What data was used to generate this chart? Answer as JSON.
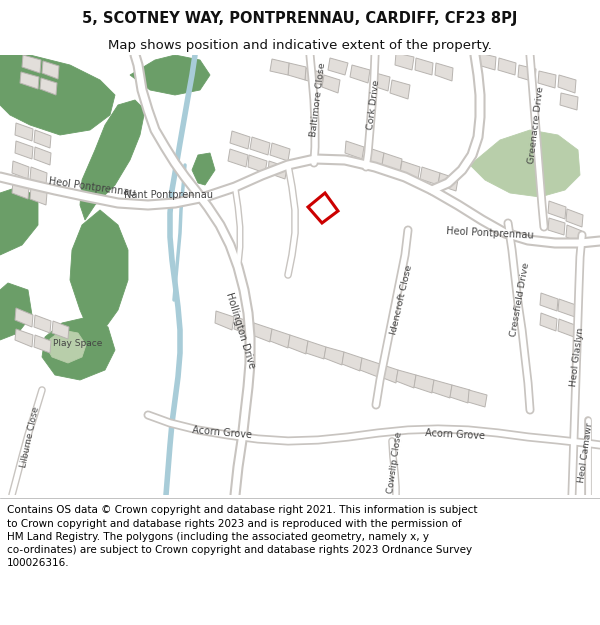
{
  "title_line1": "5, SCOTNEY WAY, PONTPRENNAU, CARDIFF, CF23 8PJ",
  "title_line2": "Map shows position and indicative extent of the property.",
  "footer_text": "Contains OS data © Crown copyright and database right 2021. This information is subject to Crown copyright and database rights 2023 and is reproduced with the permission of HM Land Registry. The polygons (including the associated geometry, namely x, y co-ordinates) are subject to Crown copyright and database rights 2023 Ordnance Survey 100026316.",
  "title_fontsize": 10.5,
  "subtitle_fontsize": 9.5,
  "footer_fontsize": 7.5,
  "map_bg": "#f2f0ed",
  "road_color": "#ffffff",
  "road_outline": "#c8c4c0",
  "building_color": "#e2deda",
  "building_outline": "#b8b4b0",
  "green_dark": "#6b9e68",
  "green_light": "#b8ceaa",
  "water_color": "#a8ccd8",
  "plot_color": "#cc0000",
  "text_color": "#444444",
  "header_bg": "#ffffff",
  "footer_bg": "#ffffff",
  "fig_width": 6.0,
  "fig_height": 6.25
}
